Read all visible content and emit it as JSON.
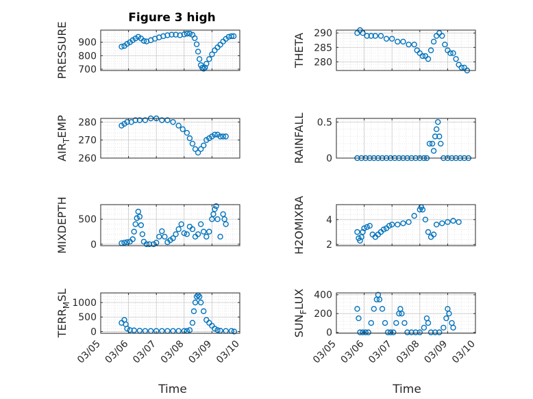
{
  "figure": {
    "title": "Figure 3 high",
    "xlabel": "Time"
  },
  "chart_data": [
    {
      "type": "scatter",
      "id": "pressure",
      "ylabel": "PRESSURE",
      "ylim": [
        690,
        990
      ],
      "yticks": [
        700,
        800,
        900
      ],
      "xlim": [
        0,
        5
      ],
      "xticks": [
        0,
        1,
        2,
        3,
        4,
        5
      ],
      "xtick_labels": [
        "03/05",
        "03/06",
        "03/07",
        "03/08",
        "03/09",
        "03/10"
      ],
      "points": [
        [
          0.75,
          867
        ],
        [
          0.85,
          872
        ],
        [
          0.95,
          888
        ],
        [
          1.05,
          900
        ],
        [
          1.15,
          915
        ],
        [
          1.25,
          928
        ],
        [
          1.35,
          940
        ],
        [
          1.45,
          928
        ],
        [
          1.55,
          910
        ],
        [
          1.65,
          906
        ],
        [
          1.8,
          915
        ],
        [
          1.95,
          926
        ],
        [
          2.1,
          936
        ],
        [
          2.25,
          945
        ],
        [
          2.4,
          952
        ],
        [
          2.55,
          956
        ],
        [
          2.7,
          956
        ],
        [
          2.85,
          952
        ],
        [
          3.0,
          958
        ],
        [
          3.1,
          964
        ],
        [
          3.2,
          964
        ],
        [
          3.3,
          955
        ],
        [
          3.38,
          930
        ],
        [
          3.45,
          885
        ],
        [
          3.5,
          830
        ],
        [
          3.55,
          775
        ],
        [
          3.6,
          730
        ],
        [
          3.65,
          710
        ],
        [
          3.7,
          703
        ],
        [
          3.75,
          712
        ],
        [
          3.8,
          740
        ],
        [
          3.9,
          775
        ],
        [
          4.0,
          810
        ],
        [
          4.1,
          840
        ],
        [
          4.2,
          862
        ],
        [
          4.3,
          882
        ],
        [
          4.4,
          905
        ],
        [
          4.5,
          925
        ],
        [
          4.6,
          940
        ],
        [
          4.7,
          945
        ],
        [
          4.78,
          945
        ]
      ]
    },
    {
      "type": "scatter",
      "id": "theta",
      "ylabel": "THETA",
      "ylim": [
        277,
        291
      ],
      "yticks": [
        280,
        285,
        290
      ],
      "xlim": [
        0,
        5
      ],
      "xticks": [
        0,
        1,
        2,
        3,
        4,
        5
      ],
      "xtick_labels": [
        "03/05",
        "03/06",
        "03/07",
        "03/08",
        "03/09",
        "03/10"
      ],
      "points": [
        [
          0.75,
          290
        ],
        [
          0.85,
          291
        ],
        [
          0.95,
          290
        ],
        [
          1.1,
          289
        ],
        [
          1.25,
          289
        ],
        [
          1.4,
          289
        ],
        [
          1.6,
          289
        ],
        [
          1.8,
          288
        ],
        [
          2.0,
          288
        ],
        [
          2.2,
          287
        ],
        [
          2.4,
          287
        ],
        [
          2.6,
          286
        ],
        [
          2.8,
          286
        ],
        [
          2.9,
          284
        ],
        [
          3.0,
          283
        ],
        [
          3.1,
          282
        ],
        [
          3.2,
          282
        ],
        [
          3.3,
          281
        ],
        [
          3.4,
          284
        ],
        [
          3.5,
          287
        ],
        [
          3.6,
          289
        ],
        [
          3.7,
          290
        ],
        [
          3.8,
          289
        ],
        [
          3.9,
          286
        ],
        [
          4.0,
          284
        ],
        [
          4.1,
          283
        ],
        [
          4.2,
          283
        ],
        [
          4.3,
          281
        ],
        [
          4.4,
          279
        ],
        [
          4.5,
          278
        ],
        [
          4.6,
          278
        ],
        [
          4.7,
          277
        ]
      ]
    },
    {
      "type": "scatter",
      "id": "air_temp",
      "ylabel": "AIR_TEMP",
      "ylim": [
        260,
        282
      ],
      "yticks": [
        260,
        270,
        280
      ],
      "xlim": [
        0,
        5
      ],
      "xticks": [
        0,
        1,
        2,
        3,
        4,
        5
      ],
      "xtick_labels": [
        "03/05",
        "03/06",
        "03/07",
        "03/08",
        "03/09",
        "03/10"
      ],
      "points": [
        [
          0.75,
          278
        ],
        [
          0.85,
          279
        ],
        [
          0.95,
          280
        ],
        [
          1.1,
          280
        ],
        [
          1.25,
          281
        ],
        [
          1.4,
          281
        ],
        [
          1.6,
          281
        ],
        [
          1.8,
          282
        ],
        [
          2.0,
          282
        ],
        [
          2.2,
          281
        ],
        [
          2.4,
          281
        ],
        [
          2.6,
          280
        ],
        [
          2.8,
          278
        ],
        [
          2.95,
          276
        ],
        [
          3.1,
          274
        ],
        [
          3.2,
          271
        ],
        [
          3.3,
          268
        ],
        [
          3.4,
          265
        ],
        [
          3.5,
          263
        ],
        [
          3.6,
          265
        ],
        [
          3.7,
          267
        ],
        [
          3.8,
          270
        ],
        [
          3.9,
          271
        ],
        [
          4.0,
          272
        ],
        [
          4.1,
          273
        ],
        [
          4.2,
          273
        ],
        [
          4.3,
          272
        ],
        [
          4.4,
          272
        ],
        [
          4.5,
          272
        ]
      ]
    },
    {
      "type": "scatter",
      "id": "rainfall",
      "ylabel": "RAINFALL",
      "ylim": [
        0,
        0.55
      ],
      "yticks": [
        0,
        0.5
      ],
      "ytick_labels": [
        "0",
        "0.5"
      ],
      "xlim": [
        0,
        5
      ],
      "xticks": [
        0,
        1,
        2,
        3,
        4,
        5
      ],
      "xtick_labels": [
        "03/05",
        "03/06",
        "03/07",
        "03/08",
        "03/09",
        "03/10"
      ],
      "points": [
        [
          0.75,
          0
        ],
        [
          0.9,
          0
        ],
        [
          1.05,
          0
        ],
        [
          1.2,
          0
        ],
        [
          1.35,
          0
        ],
        [
          1.5,
          0
        ],
        [
          1.65,
          0
        ],
        [
          1.8,
          0
        ],
        [
          1.95,
          0
        ],
        [
          2.1,
          0
        ],
        [
          2.25,
          0
        ],
        [
          2.4,
          0
        ],
        [
          2.55,
          0
        ],
        [
          2.7,
          0
        ],
        [
          2.85,
          0
        ],
        [
          3.0,
          0
        ],
        [
          3.15,
          0
        ],
        [
          3.25,
          0
        ],
        [
          3.35,
          0.2
        ],
        [
          3.45,
          0.2
        ],
        [
          3.5,
          0.1
        ],
        [
          3.55,
          0.3
        ],
        [
          3.6,
          0.4
        ],
        [
          3.65,
          0.5
        ],
        [
          3.7,
          0.3
        ],
        [
          3.75,
          0.2
        ],
        [
          3.85,
          0
        ],
        [
          4.0,
          0
        ],
        [
          4.15,
          0
        ],
        [
          4.3,
          0
        ],
        [
          4.45,
          0
        ],
        [
          4.6,
          0
        ],
        [
          4.75,
          0
        ]
      ]
    },
    {
      "type": "scatter",
      "id": "mixdepth",
      "ylabel": "MIXDEPTH",
      "ylim": [
        -30,
        790
      ],
      "yticks": [
        0,
        500
      ],
      "xlim": [
        0,
        5
      ],
      "xticks": [
        0,
        1,
        2,
        3,
        4,
        5
      ],
      "xtick_labels": [
        "03/05",
        "03/06",
        "03/07",
        "03/08",
        "03/09",
        "03/10"
      ],
      "points": [
        [
          0.75,
          20
        ],
        [
          0.85,
          30
        ],
        [
          0.95,
          40
        ],
        [
          1.05,
          50
        ],
        [
          1.15,
          100
        ],
        [
          1.2,
          250
        ],
        [
          1.25,
          400
        ],
        [
          1.3,
          520
        ],
        [
          1.35,
          650
        ],
        [
          1.4,
          550
        ],
        [
          1.45,
          380
        ],
        [
          1.5,
          200
        ],
        [
          1.55,
          50
        ],
        [
          1.65,
          0
        ],
        [
          1.75,
          0
        ],
        [
          1.9,
          0
        ],
        [
          2.0,
          30
        ],
        [
          2.1,
          150
        ],
        [
          2.2,
          260
        ],
        [
          2.3,
          150
        ],
        [
          2.4,
          40
        ],
        [
          2.5,
          80
        ],
        [
          2.6,
          120
        ],
        [
          2.7,
          200
        ],
        [
          2.8,
          300
        ],
        [
          2.9,
          400
        ],
        [
          3.0,
          220
        ],
        [
          3.1,
          200
        ],
        [
          3.2,
          350
        ],
        [
          3.3,
          300
        ],
        [
          3.4,
          150
        ],
        [
          3.5,
          200
        ],
        [
          3.6,
          400
        ],
        [
          3.7,
          250
        ],
        [
          3.8,
          150
        ],
        [
          3.9,
          250
        ],
        [
          4.0,
          500
        ],
        [
          4.05,
          600
        ],
        [
          4.1,
          700
        ],
        [
          4.15,
          760
        ],
        [
          4.2,
          500
        ],
        [
          4.3,
          150
        ],
        [
          4.4,
          600
        ],
        [
          4.45,
          500
        ],
        [
          4.5,
          400
        ]
      ]
    },
    {
      "type": "scatter",
      "id": "h2omixra",
      "ylabel": "H2OMIXRA",
      "ylim": [
        1.9,
        5.2
      ],
      "yticks": [
        2,
        4
      ],
      "xlim": [
        0,
        5
      ],
      "xticks": [
        0,
        1,
        2,
        3,
        4,
        5
      ],
      "xtick_labels": [
        "03/05",
        "03/06",
        "03/07",
        "03/08",
        "03/09",
        "03/10"
      ],
      "points": [
        [
          0.75,
          3.0
        ],
        [
          0.8,
          2.5
        ],
        [
          0.85,
          2.3
        ],
        [
          0.9,
          2.6
        ],
        [
          0.95,
          3.0
        ],
        [
          1.0,
          3.3
        ],
        [
          1.1,
          3.4
        ],
        [
          1.2,
          3.5
        ],
        [
          1.3,
          2.8
        ],
        [
          1.4,
          2.6
        ],
        [
          1.5,
          2.8
        ],
        [
          1.6,
          3.0
        ],
        [
          1.7,
          3.2
        ],
        [
          1.8,
          3.3
        ],
        [
          1.9,
          3.5
        ],
        [
          2.0,
          3.6
        ],
        [
          2.2,
          3.6
        ],
        [
          2.4,
          3.7
        ],
        [
          2.6,
          3.8
        ],
        [
          2.8,
          4.3
        ],
        [
          3.0,
          4.8
        ],
        [
          3.05,
          5.0
        ],
        [
          3.1,
          4.8
        ],
        [
          3.2,
          4.0
        ],
        [
          3.3,
          3.0
        ],
        [
          3.4,
          2.6
        ],
        [
          3.5,
          2.8
        ],
        [
          3.6,
          3.6
        ],
        [
          3.8,
          3.7
        ],
        [
          4.0,
          3.8
        ],
        [
          4.2,
          3.9
        ],
        [
          4.4,
          3.8
        ]
      ]
    },
    {
      "type": "scatter",
      "id": "terr_msl",
      "ylabel": "TERR_MSL",
      "ylim": [
        -60,
        1330
      ],
      "yticks": [
        0,
        500,
        1000
      ],
      "xlim": [
        0,
        5
      ],
      "xticks": [
        0,
        1,
        2,
        3,
        4,
        5
      ],
      "xtick_labels": [
        "03/05",
        "03/06",
        "03/07",
        "03/08",
        "03/09",
        "03/10"
      ],
      "points": [
        [
          0.75,
          300
        ],
        [
          0.85,
          400
        ],
        [
          0.9,
          250
        ],
        [
          0.95,
          100
        ],
        [
          1.05,
          50
        ],
        [
          1.2,
          40
        ],
        [
          1.4,
          30
        ],
        [
          1.6,
          20
        ],
        [
          1.8,
          20
        ],
        [
          2.0,
          20
        ],
        [
          2.2,
          20
        ],
        [
          2.4,
          20
        ],
        [
          2.6,
          20
        ],
        [
          2.8,
          20
        ],
        [
          3.0,
          20
        ],
        [
          3.1,
          20
        ],
        [
          3.2,
          50
        ],
        [
          3.3,
          300
        ],
        [
          3.35,
          700
        ],
        [
          3.4,
          1000
        ],
        [
          3.45,
          1200
        ],
        [
          3.5,
          1250
        ],
        [
          3.55,
          1200
        ],
        [
          3.6,
          1000
        ],
        [
          3.7,
          700
        ],
        [
          3.8,
          400
        ],
        [
          3.9,
          300
        ],
        [
          4.0,
          200
        ],
        [
          4.1,
          100
        ],
        [
          4.2,
          50
        ],
        [
          4.3,
          30
        ],
        [
          4.5,
          20
        ],
        [
          4.7,
          20
        ],
        [
          4.8,
          0
        ]
      ]
    },
    {
      "type": "scatter",
      "id": "sun_flux",
      "ylabel": "SUN_FLUX",
      "ylim": [
        -10,
        420
      ],
      "yticks": [
        0,
        200,
        400
      ],
      "xlim": [
        0,
        5
      ],
      "xticks": [
        0,
        1,
        2,
        3,
        4,
        5
      ],
      "xtick_labels": [
        "03/05",
        "03/06",
        "03/07",
        "03/08",
        "03/09",
        "03/10"
      ],
      "points": [
        [
          0.75,
          250
        ],
        [
          0.8,
          150
        ],
        [
          0.85,
          0
        ],
        [
          0.95,
          0
        ],
        [
          1.05,
          0
        ],
        [
          1.15,
          0
        ],
        [
          1.25,
          100
        ],
        [
          1.35,
          250
        ],
        [
          1.45,
          350
        ],
        [
          1.5,
          400
        ],
        [
          1.55,
          350
        ],
        [
          1.65,
          250
        ],
        [
          1.75,
          100
        ],
        [
          1.85,
          0
        ],
        [
          1.95,
          0
        ],
        [
          2.05,
          0
        ],
        [
          2.15,
          100
        ],
        [
          2.25,
          200
        ],
        [
          2.3,
          250
        ],
        [
          2.35,
          200
        ],
        [
          2.45,
          100
        ],
        [
          2.55,
          0
        ],
        [
          2.7,
          0
        ],
        [
          2.85,
          0
        ],
        [
          3.0,
          0
        ],
        [
          3.15,
          50
        ],
        [
          3.25,
          150
        ],
        [
          3.3,
          100
        ],
        [
          3.4,
          0
        ],
        [
          3.55,
          0
        ],
        [
          3.7,
          0
        ],
        [
          3.85,
          50
        ],
        [
          3.95,
          150
        ],
        [
          4.0,
          250
        ],
        [
          4.05,
          200
        ],
        [
          4.15,
          100
        ],
        [
          4.2,
          50
        ]
      ]
    }
  ]
}
